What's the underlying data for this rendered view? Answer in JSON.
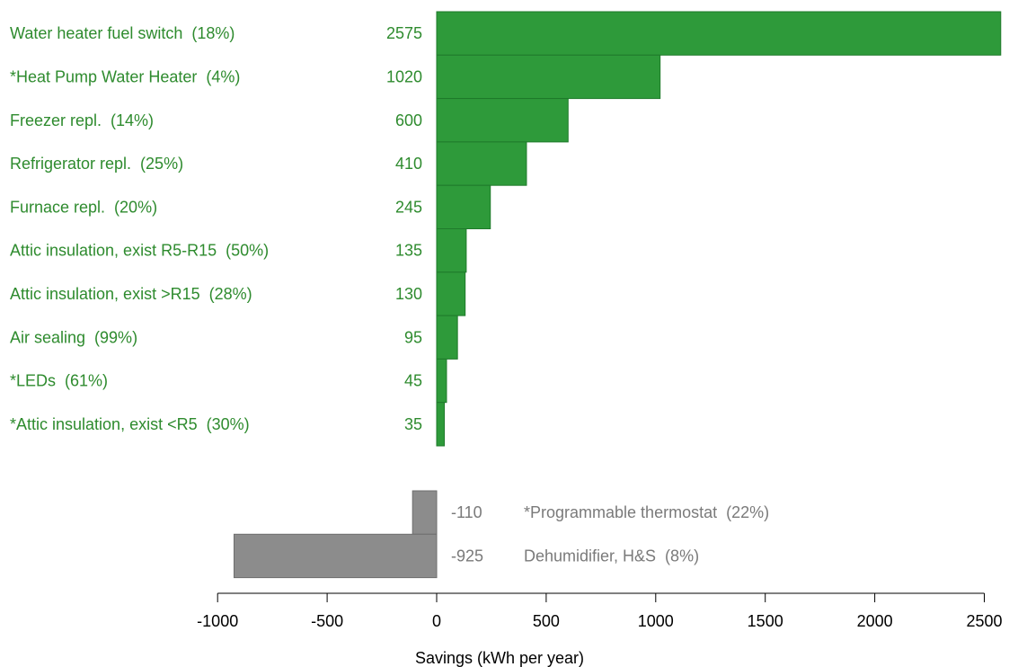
{
  "chart_data": {
    "type": "bar",
    "orientation": "horizontal",
    "xlabel": "Savings (kWh per year)",
    "xlim": [
      -1000,
      2600
    ],
    "xticks": [
      -1000,
      -500,
      0,
      500,
      1000,
      1500,
      2000,
      2500
    ],
    "grid": false,
    "colors": {
      "positive": "#2e9a3a",
      "positive_edge": "#1f7a2b",
      "positive_text": "#2e8b2e",
      "negative": "#8c8c8c",
      "negative_edge": "#6e6e6e",
      "negative_text": "#7a7a7a"
    },
    "positive": [
      {
        "label": "Water heater fuel switch  (18%)",
        "value": 2575,
        "value_label": "2575"
      },
      {
        "label": "*Heat Pump Water Heater  (4%)",
        "value": 1020,
        "value_label": "1020"
      },
      {
        "label": "Freezer repl.  (14%)",
        "value": 600,
        "value_label": "600"
      },
      {
        "label": "Refrigerator repl.  (25%)",
        "value": 410,
        "value_label": "410"
      },
      {
        "label": "Furnace repl.  (20%)",
        "value": 245,
        "value_label": "245"
      },
      {
        "label": "Attic insulation, exist R5-R15  (50%)",
        "value": 135,
        "value_label": "135"
      },
      {
        "label": "Attic insulation, exist >R15  (28%)",
        "value": 130,
        "value_label": "130"
      },
      {
        "label": "Air sealing  (99%)",
        "value": 95,
        "value_label": "95"
      },
      {
        "label": "*LEDs  (61%)",
        "value": 45,
        "value_label": "45"
      },
      {
        "label": "*Attic insulation, exist <R5  (30%)",
        "value": 35,
        "value_label": "35"
      }
    ],
    "negative": [
      {
        "label": "*Programmable thermostat  (22%)",
        "value": -110,
        "value_label": "-110"
      },
      {
        "label": "Dehumidifier, H&S  (8%)",
        "value": -925,
        "value_label": "-925"
      }
    ]
  }
}
